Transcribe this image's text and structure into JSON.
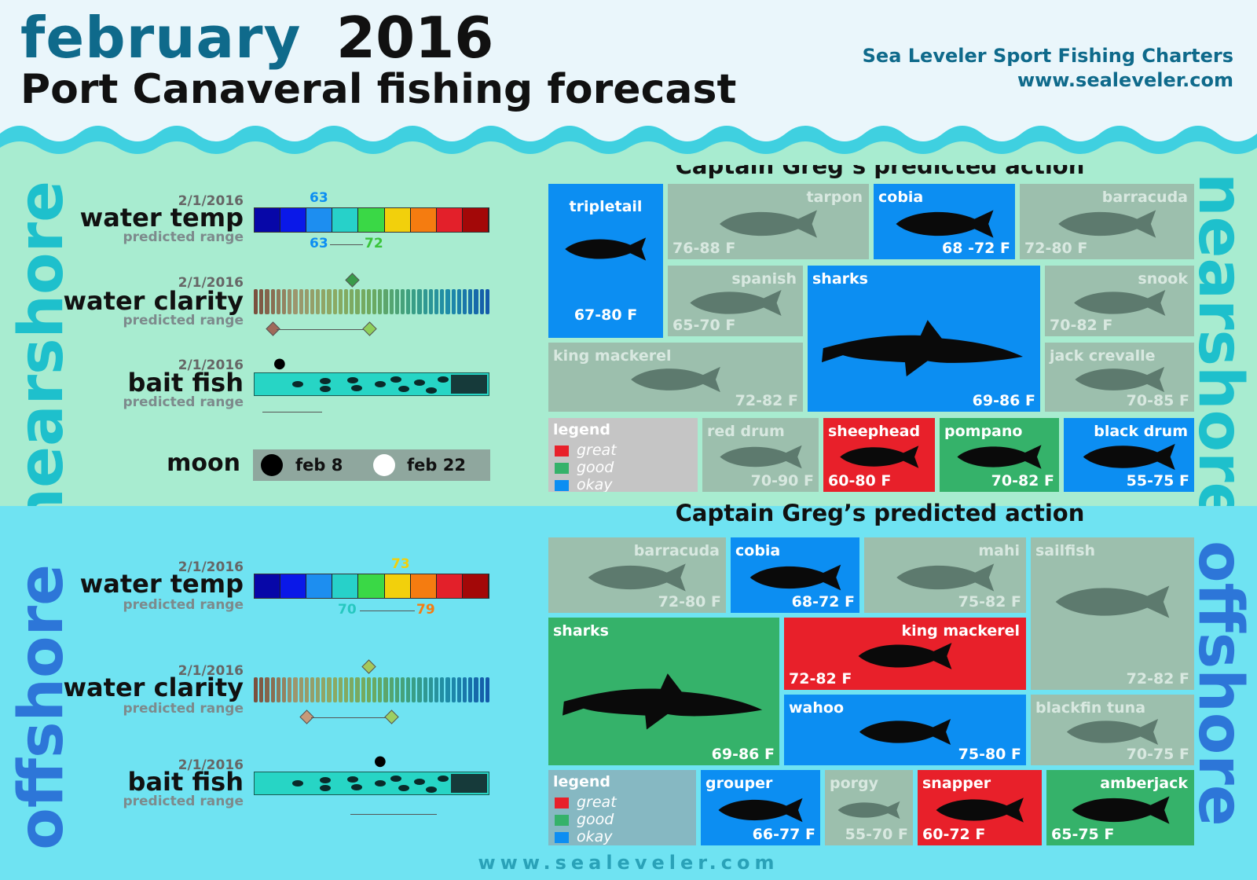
{
  "header": {
    "month": "february",
    "year": "2016",
    "subtitle": "Port Canaveral fishing forecast",
    "company": "Sea Leveler Sport Fishing Charters",
    "website": "www.sealeveler.com"
  },
  "colors": {
    "great": "#e8202a",
    "good": "#35b26a",
    "okay": "#0c8ef2",
    "dim": "#9cbfad",
    "nearshore_bg": "#a8ecd0",
    "offshore_bg": "#6fe3f2"
  },
  "nearshore": {
    "side_label": "nearshore",
    "heading": "Captain Greg’s predicted action",
    "water_temp": {
      "date": "2/1/2016",
      "label": "water temp",
      "sub": "predicted range",
      "value": "63",
      "range_low": "63",
      "range_high": "72"
    },
    "water_clarity": {
      "date": "2/1/2016",
      "label": "water clarity",
      "sub": "predicted range"
    },
    "bait_fish": {
      "date": "2/1/2016",
      "label": "bait fish",
      "sub": "predicted range"
    },
    "moon": {
      "label": "moon",
      "new": "feb 8",
      "full": "feb 22"
    },
    "legend": {
      "title": "legend",
      "great": "great",
      "good": "good",
      "okay": "okay"
    },
    "tiles": {
      "tripletail": {
        "name": "tripletail",
        "range": "67-80 F",
        "rating": "okay"
      },
      "tarpon": {
        "name": "tarpon",
        "range": "76-88 F",
        "rating": "dim"
      },
      "cobia": {
        "name": "cobia",
        "range": "68 -72 F",
        "rating": "okay"
      },
      "barracuda": {
        "name": "barracuda",
        "range": "72-80 F",
        "rating": "dim"
      },
      "spanish": {
        "name": "spanish",
        "range": "65-70 F",
        "rating": "dim"
      },
      "sharks": {
        "name": "sharks",
        "range": "69-86 F",
        "rating": "okay"
      },
      "snook": {
        "name": "snook",
        "range": "70-82 F",
        "rating": "dim"
      },
      "king_mackerel": {
        "name": "king mackerel",
        "range": "72-82 F",
        "rating": "dim"
      },
      "jack_crevalle": {
        "name": "jack crevalle",
        "range": "70-85 F",
        "rating": "dim"
      },
      "red_drum": {
        "name": "red drum",
        "range": "70-90 F",
        "rating": "dim"
      },
      "sheephead": {
        "name": "sheephead",
        "range": "60-80 F",
        "rating": "great"
      },
      "pompano": {
        "name": "pompano",
        "range": "70-82 F",
        "rating": "good"
      },
      "black_drum": {
        "name": "black drum",
        "range": "55-75 F",
        "rating": "okay"
      }
    }
  },
  "offshore": {
    "side_label": "offshore",
    "heading": "Captain Greg’s predicted action",
    "water_temp": {
      "date": "2/1/2016",
      "label": "water temp",
      "sub": "predicted range",
      "value": "73",
      "range_low": "70",
      "range_high": "79"
    },
    "water_clarity": {
      "date": "2/1/2016",
      "label": "water clarity",
      "sub": "predicted range"
    },
    "bait_fish": {
      "date": "2/1/2016",
      "label": "bait fish",
      "sub": "predicted range"
    },
    "legend": {
      "title": "legend",
      "great": "great",
      "good": "good",
      "okay": "okay"
    },
    "tiles": {
      "barracuda": {
        "name": "barracuda",
        "range": "72-80 F",
        "rating": "dim"
      },
      "cobia": {
        "name": "cobia",
        "range": "68-72 F",
        "rating": "okay"
      },
      "mahi": {
        "name": "mahi",
        "range": "75-82 F",
        "rating": "dim"
      },
      "sailfish": {
        "name": "sailfish",
        "range": "72-82 F",
        "rating": "dim"
      },
      "sharks": {
        "name": "sharks",
        "range": "69-86 F",
        "rating": "good"
      },
      "king_mackerel": {
        "name": "king mackerel",
        "range": "72-82 F",
        "rating": "great"
      },
      "wahoo": {
        "name": "wahoo",
        "range": "75-80 F",
        "rating": "okay"
      },
      "blackfin_tuna": {
        "name": "blackfin tuna",
        "range": "70-75 F",
        "rating": "dim"
      },
      "grouper": {
        "name": "grouper",
        "range": "66-77 F",
        "rating": "okay"
      },
      "porgy": {
        "name": "porgy",
        "range": "55-70 F",
        "rating": "dim"
      },
      "snapper": {
        "name": "snapper",
        "range": "60-72 F",
        "rating": "great"
      },
      "amberjack": {
        "name": "amberjack",
        "range": "65-75 F",
        "rating": "good"
      }
    }
  },
  "footer": {
    "website": "www.sealeveler.com"
  }
}
